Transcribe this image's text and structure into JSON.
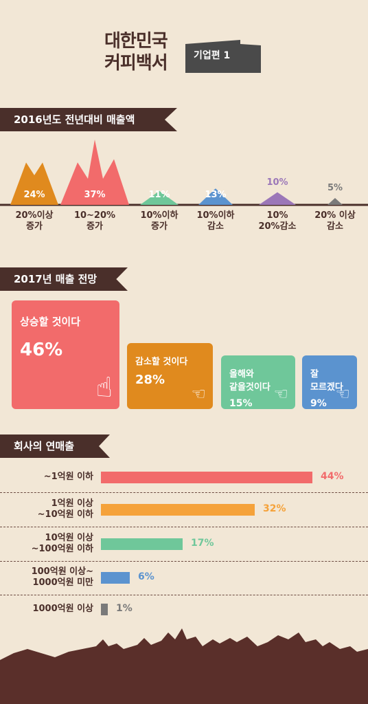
{
  "header": {
    "title": "대한민국\n커피백서",
    "edition": "기업편 1"
  },
  "sections": {
    "s1": "2016년도 전년대비 매출액",
    "s2": "2017년 매출 전망",
    "s3": "회사의 연매출"
  },
  "colors": {
    "orange": "#e08a1e",
    "coral": "#f26b6b",
    "green": "#6fc79a",
    "blue": "#5b93cf",
    "purple": "#9b77b8",
    "gray": "#7a7a7a",
    "brown": "#4a2f2a"
  },
  "chart_data": [
    {
      "type": "bar",
      "title": "2016년도 전년대비 매출액",
      "categories": [
        "20%이상\n증가",
        "10~20%\n증가",
        "10%이하\n증가",
        "10%이하\n감소",
        "10%\n20%감소",
        "20% 이상\n감소"
      ],
      "values": [
        24,
        37,
        11,
        13,
        10,
        5
      ],
      "labels": [
        "24%",
        "37%",
        "11%",
        "13%",
        "10%",
        "5%"
      ]
    },
    {
      "type": "bar",
      "title": "2017년 매출 전망",
      "categories": [
        "상승할 것이다",
        "감소할 것이다",
        "올해와\n같을것이다",
        "잘\n모르겠다"
      ],
      "values": [
        46,
        28,
        15,
        9
      ],
      "labels": [
        "46%",
        "28%",
        "15%",
        "9%"
      ]
    },
    {
      "type": "bar",
      "title": "회사의 연매출",
      "categories": [
        "~1억원 이하",
        "1억원 이상\n~10억원 이하",
        "10억원 이상\n~100억원 이하",
        "100억원 이상~\n1000억원 미만",
        "1000억원 이상"
      ],
      "values": [
        44,
        32,
        17,
        6,
        1
      ],
      "labels": [
        "44%",
        "32%",
        "17%",
        "6%",
        "1%"
      ]
    }
  ]
}
